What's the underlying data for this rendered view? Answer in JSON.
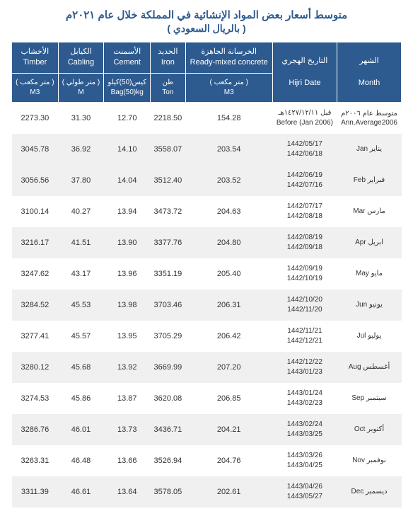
{
  "title": "متوسط أسعار بعض المواد الإنشائية في المملكة خلال عام ٢٠٢١م",
  "subtitle": "( بالريال السعودي )",
  "headers": {
    "month_ar": "الشهر",
    "month_en": "Month",
    "hijri_ar": "التاريخ الهجري",
    "hijri_en": "Hijri Date",
    "concrete_ar": "الخرسانة الجاهزة",
    "concrete_en": "Ready-mixed concrete",
    "iron_ar": "الحديد",
    "iron_en": "Iron",
    "cement_ar": "الأسمنت",
    "cement_en": "Cement",
    "cabling_ar": "الكيابل",
    "cabling_en": "Cabling",
    "timber_ar": "الأخشاب",
    "timber_en": "Timber",
    "unit_m3_ar": "( متر مكعب )",
    "unit_m3_en": "M3",
    "unit_ton_ar": "طن",
    "unit_ton_en": "Ton",
    "unit_bag_ar": "كيس(50)كيلو",
    "unit_bag_en": "Bag(50)kg",
    "unit_m_ar": "( متر طولي )",
    "unit_m_en": "M"
  },
  "rows": [
    {
      "month": "متوسط عام ٢٠٠٦م\nAnn.Average2006",
      "hijri": "قبل ١٤٢٧/١٢/١١هـ\nBefore  (Jan 2006)",
      "concrete": "154.28",
      "iron": "2218.50",
      "cement": "12.70",
      "cabling": "31.30",
      "timber": "2273.30"
    },
    {
      "month": "يناير Jan",
      "hijri": "1442/05/17\n1442/06/18",
      "concrete": "203.54",
      "iron": "3558.07",
      "cement": "14.10",
      "cabling": "36.92",
      "timber": "3045.78"
    },
    {
      "month": "فبراير Feb",
      "hijri": "1442/06/19\n1442/07/16",
      "concrete": "203.52",
      "iron": "3512.40",
      "cement": "14.04",
      "cabling": "37.80",
      "timber": "3056.56"
    },
    {
      "month": "مارس Mar",
      "hijri": "1442/07/17\n1442/08/18",
      "concrete": "204.63",
      "iron": "3473.72",
      "cement": "13.94",
      "cabling": "40.27",
      "timber": "3100.14"
    },
    {
      "month": "ابريل Apr",
      "hijri": "1442/08/19\n1442/09/18",
      "concrete": "204.80",
      "iron": "3377.76",
      "cement": "13.90",
      "cabling": "41.51",
      "timber": "3216.17"
    },
    {
      "month": "مايو May",
      "hijri": "1442/09/19\n1442/10/19",
      "concrete": "205.40",
      "iron": "3351.19",
      "cement": "13.96",
      "cabling": "43.17",
      "timber": "3247.62"
    },
    {
      "month": "يونيو Jun",
      "hijri": "1442/10/20\n1442/11/20",
      "concrete": "206.31",
      "iron": "3703.46",
      "cement": "13.98",
      "cabling": "45.53",
      "timber": "3284.52"
    },
    {
      "month": "يوليو Jul",
      "hijri": "1442/11/21\n1442/12/21",
      "concrete": "206.42",
      "iron": "3705.29",
      "cement": "13.95",
      "cabling": "45.57",
      "timber": "3277.41"
    },
    {
      "month": "أغسطس Aug",
      "hijri": "1442/12/22\n1443/01/23",
      "concrete": "207.20",
      "iron": "3669.99",
      "cement": "13.92",
      "cabling": "45.68",
      "timber": "3280.12"
    },
    {
      "month": "سبتمبر Sep",
      "hijri": "1443/01/24\n1443/02/23",
      "concrete": "206.85",
      "iron": "3620.08",
      "cement": "13.87",
      "cabling": "45.86",
      "timber": "3274.53"
    },
    {
      "month": "أكتوبر Oct",
      "hijri": "1443/02/24\n1443/03/25",
      "concrete": "204.21",
      "iron": "3436.71",
      "cement": "13.73",
      "cabling": "46.01",
      "timber": "3286.76"
    },
    {
      "month": "نوفمبر Nov",
      "hijri": "1443/03/26\n1443/04/25",
      "concrete": "204.76",
      "iron": "3526.94",
      "cement": "13.66",
      "cabling": "46.48",
      "timber": "3263.31"
    },
    {
      "month": "ديسمبر Dec",
      "hijri": "1443/04/26\n1443/05/27",
      "concrete": "202.61",
      "iron": "3578.05",
      "cement": "13.64",
      "cabling": "46.61",
      "timber": "3311.39"
    }
  ],
  "colors": {
    "header_bg": "#2e5b8f",
    "header_text": "#ffffff",
    "row_alt": "#f0f0f0",
    "title_color": "#2e5b8f"
  }
}
